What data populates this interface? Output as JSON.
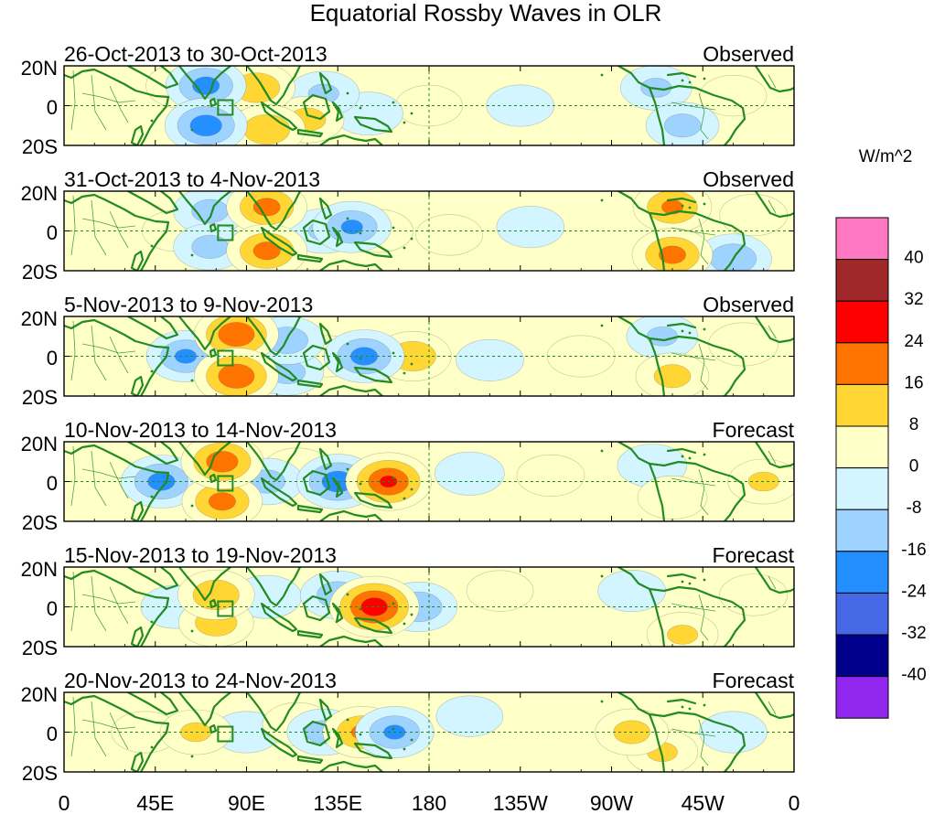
{
  "chart_data": {
    "type": "heatmap",
    "title": "Equatorial Rossby Waves in OLR",
    "units": "W/m^2",
    "x_ticks": [
      "0",
      "45E",
      "90E",
      "135E",
      "180",
      "135W",
      "90W",
      "45W",
      "0"
    ],
    "y_ticks": [
      "20N",
      "0",
      "20S"
    ],
    "lon_range": [
      0,
      360
    ],
    "lat_range": [
      -20,
      20
    ],
    "colorbar": {
      "levels": [
        "40",
        "32",
        "24",
        "16",
        "8",
        "0",
        "-8",
        "-16",
        "-24",
        "-32",
        "-40"
      ],
      "colors": [
        "#ff77c0",
        "#a02828",
        "#ff0000",
        "#ff7300",
        "#ffd633",
        "#ffffc8",
        "#d2f5ff",
        "#9ed2ff",
        "#2490ff",
        "#4668e6",
        "#00008c",
        "#9126ee"
      ]
    },
    "panels": [
      {
        "period": "26-Oct-2013 to 30-Oct-2013",
        "status": "Observed",
        "anomalies": [
          {
            "lon": 58,
            "lat": 10,
            "value": 10
          },
          {
            "lon": 70,
            "lat": 10,
            "value": -20
          },
          {
            "lon": 70,
            "lat": -10,
            "value": -22
          },
          {
            "lon": 95,
            "lat": 9,
            "value": 16
          },
          {
            "lon": 100,
            "lat": -12,
            "value": 16
          },
          {
            "lon": 120,
            "lat": -7,
            "value": 12
          },
          {
            "lon": 128,
            "lat": 6,
            "value": -10
          },
          {
            "lon": 150,
            "lat": -4,
            "value": -8
          },
          {
            "lon": 180,
            "lat": 0,
            "value": 5
          },
          {
            "lon": 225,
            "lat": 0,
            "value": -6
          },
          {
            "lon": 292,
            "lat": 9,
            "value": -10
          },
          {
            "lon": 305,
            "lat": -10,
            "value": -12
          },
          {
            "lon": 330,
            "lat": 5,
            "value": 5
          }
        ]
      },
      {
        "period": "31-Oct-2013 to 4-Nov-2013",
        "status": "Observed",
        "anomalies": [
          {
            "lon": 55,
            "lat": 0,
            "value": 5
          },
          {
            "lon": 72,
            "lat": 10,
            "value": -12
          },
          {
            "lon": 72,
            "lat": -8,
            "value": -12
          },
          {
            "lon": 100,
            "lat": 12,
            "value": 20
          },
          {
            "lon": 100,
            "lat": -10,
            "value": 20
          },
          {
            "lon": 128,
            "lat": 0,
            "value": -10
          },
          {
            "lon": 142,
            "lat": 2,
            "value": -18
          },
          {
            "lon": 155,
            "lat": 0,
            "value": 8
          },
          {
            "lon": 190,
            "lat": -2,
            "value": 5
          },
          {
            "lon": 230,
            "lat": 2,
            "value": -6
          },
          {
            "lon": 300,
            "lat": 12,
            "value": 18
          },
          {
            "lon": 300,
            "lat": -12,
            "value": 20
          },
          {
            "lon": 330,
            "lat": -14,
            "value": -16
          },
          {
            "lon": 340,
            "lat": 8,
            "value": 6
          }
        ]
      },
      {
        "period": "5-Nov-2013 to 9-Nov-2013",
        "status": "Observed",
        "anomalies": [
          {
            "lon": 60,
            "lat": 0,
            "value": -18
          },
          {
            "lon": 85,
            "lat": 11,
            "value": 24
          },
          {
            "lon": 85,
            "lat": -10,
            "value": 24
          },
          {
            "lon": 110,
            "lat": 8,
            "value": -14
          },
          {
            "lon": 110,
            "lat": -8,
            "value": -12
          },
          {
            "lon": 130,
            "lat": 0,
            "value": 6
          },
          {
            "lon": 148,
            "lat": 0,
            "value": -20
          },
          {
            "lon": 172,
            "lat": 0,
            "value": 16
          },
          {
            "lon": 210,
            "lat": -2,
            "value": -6
          },
          {
            "lon": 255,
            "lat": 0,
            "value": 6
          },
          {
            "lon": 295,
            "lat": 10,
            "value": -10
          },
          {
            "lon": 300,
            "lat": -10,
            "value": 12
          },
          {
            "lon": 335,
            "lat": 6,
            "value": 8
          }
        ]
      },
      {
        "period": "10-Nov-2013 to 14-Nov-2013",
        "status": "Forecast",
        "anomalies": [
          {
            "lon": 48,
            "lat": 0,
            "value": -20
          },
          {
            "lon": 78,
            "lat": 10,
            "value": 22
          },
          {
            "lon": 78,
            "lat": -10,
            "value": 20
          },
          {
            "lon": 100,
            "lat": 0,
            "value": -12
          },
          {
            "lon": 115,
            "lat": 6,
            "value": 8
          },
          {
            "lon": 135,
            "lat": 0,
            "value": -22
          },
          {
            "lon": 160,
            "lat": 0,
            "value": 26
          },
          {
            "lon": 200,
            "lat": 4,
            "value": -8
          },
          {
            "lon": 240,
            "lat": 3,
            "value": 6
          },
          {
            "lon": 290,
            "lat": 8,
            "value": -8
          },
          {
            "lon": 300,
            "lat": -8,
            "value": 8
          },
          {
            "lon": 345,
            "lat": 0,
            "value": 10
          }
        ]
      },
      {
        "period": "15-Nov-2013 to 19-Nov-2013",
        "status": "Forecast",
        "anomalies": [
          {
            "lon": 55,
            "lat": 0,
            "value": -8
          },
          {
            "lon": 75,
            "lat": 6,
            "value": 16
          },
          {
            "lon": 75,
            "lat": -8,
            "value": 14
          },
          {
            "lon": 100,
            "lat": 5,
            "value": -8
          },
          {
            "lon": 135,
            "lat": 6,
            "value": -14
          },
          {
            "lon": 153,
            "lat": 0,
            "value": 30
          },
          {
            "lon": 175,
            "lat": 0,
            "value": -16
          },
          {
            "lon": 215,
            "lat": 8,
            "value": 5
          },
          {
            "lon": 280,
            "lat": 8,
            "value": -6
          },
          {
            "lon": 305,
            "lat": -14,
            "value": 10
          },
          {
            "lon": 340,
            "lat": 6,
            "value": 6
          }
        ]
      },
      {
        "period": "20-Nov-2013 to 24-Nov-2013",
        "status": "Forecast",
        "anomalies": [
          {
            "lon": 40,
            "lat": 0,
            "value": 6
          },
          {
            "lon": 65,
            "lat": 0,
            "value": 10
          },
          {
            "lon": 90,
            "lat": 0,
            "value": -6
          },
          {
            "lon": 115,
            "lat": 4,
            "value": 8
          },
          {
            "lon": 128,
            "lat": 0,
            "value": -12
          },
          {
            "lon": 147,
            "lat": 0,
            "value": 18
          },
          {
            "lon": 163,
            "lat": 0,
            "value": -18
          },
          {
            "lon": 200,
            "lat": 8,
            "value": -5
          },
          {
            "lon": 280,
            "lat": 0,
            "value": 12
          },
          {
            "lon": 295,
            "lat": -10,
            "value": 10
          },
          {
            "lon": 330,
            "lat": 0,
            "value": -6
          }
        ]
      }
    ]
  }
}
